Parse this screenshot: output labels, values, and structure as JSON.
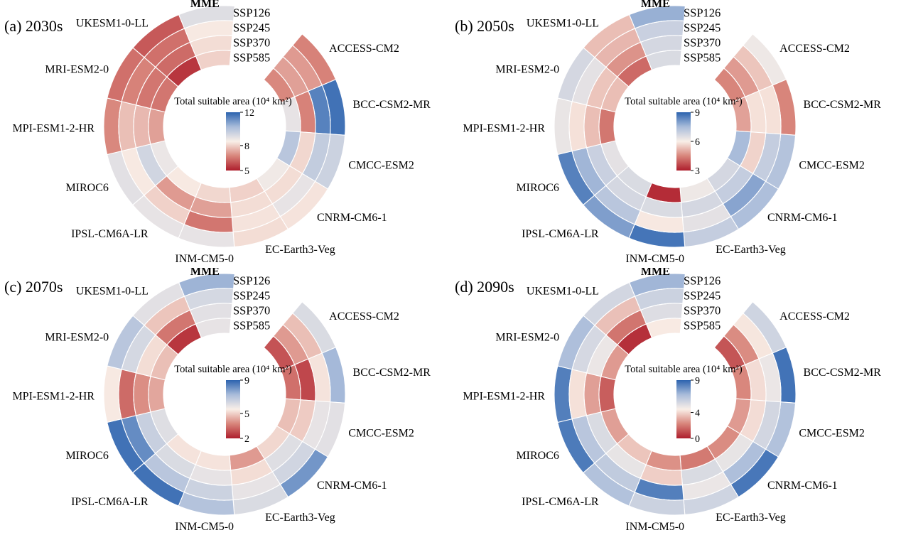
{
  "figure": {
    "colormap_anchors": [
      "#ae1e2c",
      "#d8857b",
      "#f9efe8",
      "#a9bcda",
      "#2c63af"
    ],
    "ring_labels": [
      "SSP126",
      "SSP245",
      "SSP370",
      "SSP585"
    ]
  },
  "chart_data": [
    {
      "panel": "a",
      "title": "(a) 2030s",
      "type": "heatmap",
      "layout": "polar",
      "colorbar": {
        "title": "Total suitable area (10⁴ km²)",
        "min": 5,
        "max": 12,
        "ticks": [
          12,
          8,
          5
        ]
      },
      "rings": [
        "SSP126",
        "SSP245",
        "SSP370",
        "SSP585"
      ],
      "sectors": [
        {
          "name": "ACCESS-CM2",
          "values": [
            6.7,
            7.1,
            7.2,
            6.8
          ]
        },
        {
          "name": "BCC-CSM2-MR",
          "values": [
            11.7,
            11.4,
            6.7,
            8.9
          ]
        },
        {
          "name": "CMCC-ESM2",
          "values": [
            9.5,
            9.7,
            8.1,
            9.9
          ]
        },
        {
          "name": "CNRM-CM6-1",
          "values": [
            8.3,
            8.9,
            8.2,
            8.7
          ]
        },
        {
          "name": "EC-Earth3-Veg",
          "values": [
            8.2,
            8.3,
            8.2,
            8.0
          ]
        },
        {
          "name": "INM-CM5-0",
          "values": [
            8.9,
            6.5,
            7.2,
            8.1
          ]
        },
        {
          "name": "IPSL-CM6A-LR",
          "values": [
            8.9,
            8.0,
            7.1,
            8.4
          ]
        },
        {
          "name": "MIROC6",
          "values": [
            9.0,
            8.4,
            9.4,
            8.8
          ]
        },
        {
          "name": "MPI-ESM1-2-HR",
          "values": [
            6.8,
            7.7,
            7.6,
            7.2
          ]
        },
        {
          "name": "MRI-ESM2-0",
          "values": [
            6.4,
            6.7,
            6.5,
            6.5
          ]
        },
        {
          "name": "UKESM1-0-LL",
          "values": [
            6.0,
            6.4,
            6.3,
            5.4
          ]
        },
        {
          "name": "MME",
          "values": [
            9.1,
            8.4,
            8.2,
            8.0
          ]
        }
      ]
    },
    {
      "panel": "b",
      "title": "(b) 2050s",
      "type": "heatmap",
      "layout": "polar",
      "colorbar": {
        "title": "Total suitable area (10⁴ km²)",
        "min": 3,
        "max": 9,
        "ticks": [
          9,
          6,
          3
        ]
      },
      "rings": [
        "SSP126",
        "SSP245",
        "SSP370",
        "SSP585"
      ],
      "sectors": [
        {
          "name": "ACCESS-CM2",
          "values": [
            6.2,
            5.4,
            4.8,
            4.5
          ]
        },
        {
          "name": "BCC-CSM2-MR",
          "values": [
            4.5,
            5.8,
            5.8,
            4.9
          ]
        },
        {
          "name": "CMCC-ESM2",
          "values": [
            7.3,
            7.0,
            5.6,
            7.5
          ]
        },
        {
          "name": "CNRM-CM6-1",
          "values": [
            7.4,
            7.9,
            7.0,
            6.7
          ]
        },
        {
          "name": "EC-Earth3-Veg",
          "values": [
            7.0,
            6.4,
            6.7,
            6.2
          ]
        },
        {
          "name": "INM-CM5-0",
          "values": [
            8.7,
            5.9,
            6.6,
            3.2
          ]
        },
        {
          "name": "IPSL-CM6A-LR",
          "values": [
            8.0,
            7.2,
            6.7,
            6.6
          ]
        },
        {
          "name": "MIROC6",
          "values": [
            8.5,
            7.6,
            6.9,
            6.4
          ]
        },
        {
          "name": "MPI-ESM1-2-HR",
          "values": [
            6.3,
            5.8,
            5.3,
            4.3
          ]
        },
        {
          "name": "MRI-ESM2-0",
          "values": [
            6.7,
            6.4,
            5.4,
            5.3
          ]
        },
        {
          "name": "UKESM1-0-LL",
          "values": [
            5.3,
            5.2,
            4.7,
            4.1
          ]
        },
        {
          "name": "MME",
          "values": [
            7.7,
            6.9,
            6.7,
            6.6
          ]
        }
      ]
    },
    {
      "panel": "c",
      "title": "(c) 2070s",
      "type": "heatmap",
      "layout": "polar",
      "colorbar": {
        "title": "Total suitable area (10⁴ km²)",
        "min": 2,
        "max": 9,
        "ticks": [
          9,
          5,
          2
        ]
      },
      "rings": [
        "SSP126",
        "SSP245",
        "SSP370",
        "SSP585"
      ],
      "sectors": [
        {
          "name": "ACCESS-CM2",
          "values": [
            6.2,
            4.7,
            4.1,
            2.9
          ]
        },
        {
          "name": "BCC-CSM2-MR",
          "values": [
            7.3,
            5.3,
            2.7,
            3.4
          ]
        },
        {
          "name": "CMCC-ESM2",
          "values": [
            6.0,
            5.9,
            4.9,
            4.7
          ]
        },
        {
          "name": "CNRM-CM6-1",
          "values": [
            8.0,
            6.4,
            6.1,
            5.1
          ]
        },
        {
          "name": "EC-Earth3-Veg",
          "values": [
            6.2,
            5.9,
            5.2,
            4.1
          ]
        },
        {
          "name": "INM-CM5-0",
          "values": [
            7.0,
            6.5,
            5.9,
            5.3
          ]
        },
        {
          "name": "IPSL-CM6A-LR",
          "values": [
            8.7,
            6.9,
            6.2,
            5.3
          ]
        },
        {
          "name": "MIROC6",
          "values": [
            8.7,
            8.2,
            6.6,
            6.1
          ]
        },
        {
          "name": "MPI-ESM1-2-HR",
          "values": [
            5.4,
            3.3,
            3.9,
            4.3
          ]
        },
        {
          "name": "MRI-ESM2-0",
          "values": [
            6.9,
            6.3,
            5.2,
            4.7
          ]
        },
        {
          "name": "UKESM1-0-LL",
          "values": [
            6.0,
            4.8,
            3.5,
            2.4
          ]
        },
        {
          "name": "MME",
          "values": [
            7.4,
            6.3,
            6.0,
            5.9
          ]
        }
      ]
    },
    {
      "panel": "d",
      "title": "(d) 2090s",
      "type": "heatmap",
      "layout": "polar",
      "colorbar": {
        "title": "Total suitable area (10⁴ km²)",
        "min": 0,
        "max": 9,
        "ticks": [
          9,
          4,
          0
        ]
      },
      "rings": [
        "SSP126",
        "SSP245",
        "SSP370",
        "SSP585"
      ],
      "sectors": [
        {
          "name": "ACCESS-CM2",
          "values": [
            5.7,
            4.3,
            2.4,
            1.2
          ]
        },
        {
          "name": "BCC-CSM2-MR",
          "values": [
            8.6,
            4.9,
            4.1,
            2.3
          ]
        },
        {
          "name": "CMCC-ESM2",
          "values": [
            6.5,
            5.6,
            4.1,
            2.7
          ]
        },
        {
          "name": "CNRM-CM6-1",
          "values": [
            8.5,
            6.6,
            5.0,
            2.4
          ]
        },
        {
          "name": "EC-Earth3-Veg",
          "values": [
            5.7,
            4.9,
            5.4,
            2.0
          ]
        },
        {
          "name": "INM-CM5-0",
          "values": [
            5.8,
            8.3,
            3.8,
            2.5
          ]
        },
        {
          "name": "IPSL-CM6A-LR",
          "values": [
            6.5,
            6.1,
            5.0,
            3.6
          ]
        },
        {
          "name": "MIROC6",
          "values": [
            8.4,
            6.3,
            5.4,
            2.8
          ]
        },
        {
          "name": "MPI-ESM1-2-HR",
          "values": [
            8.3,
            4.2,
            2.8,
            1.4
          ]
        },
        {
          "name": "MRI-ESM2-0",
          "values": [
            6.6,
            5.5,
            4.9,
            2.7
          ]
        },
        {
          "name": "UKESM1-0-LL",
          "values": [
            5.6,
            3.5,
            1.9,
            0.4
          ]
        },
        {
          "name": "MME",
          "values": [
            6.9,
            5.8,
            5.3,
            4.4
          ]
        }
      ]
    }
  ]
}
